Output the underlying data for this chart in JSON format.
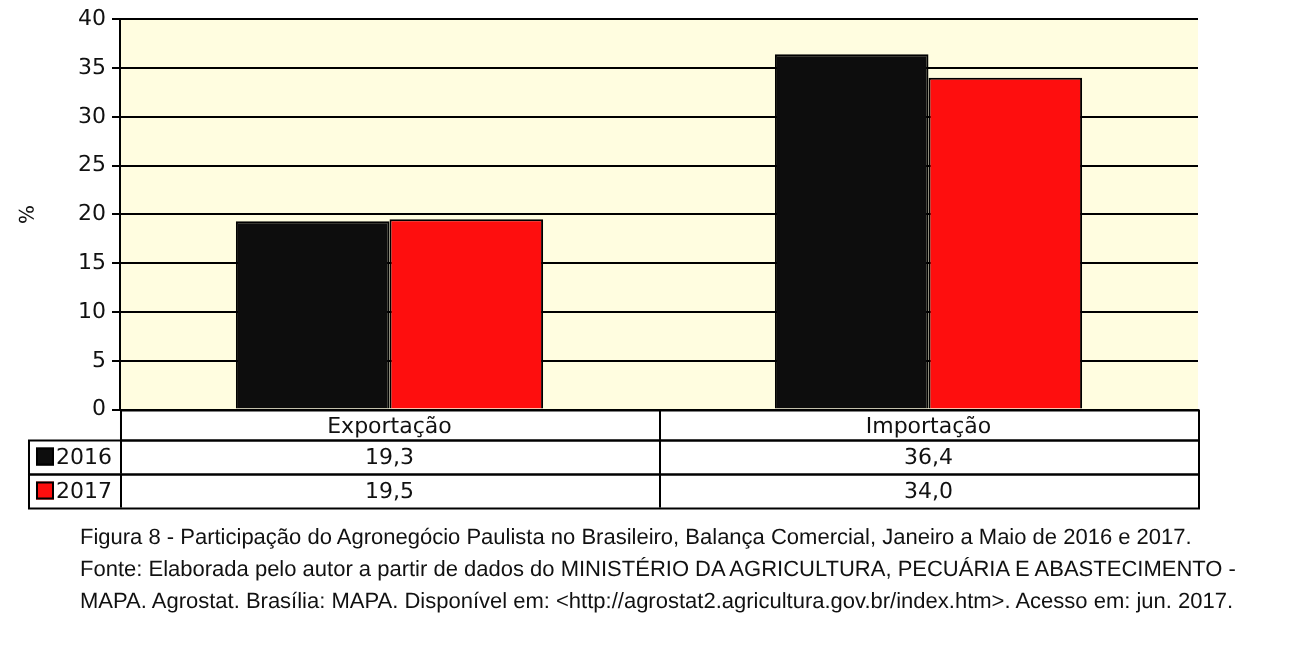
{
  "chart_data": {
    "type": "bar",
    "title": "Figura 8 - Participação do Agronegócio Paulista no Brasileiro, Balança Comercial, Janeiro a Maio de 2016 e 2017.",
    "ylabel": "%",
    "categories": [
      "Exportação",
      "Importação"
    ],
    "series": [
      {
        "name": "2016",
        "color": "#0d0d0d",
        "values": [
          19.3,
          36.4
        ],
        "value_labels": [
          "19,3",
          "36,4"
        ]
      },
      {
        "name": "2017",
        "color": "#fe0e0e",
        "values": [
          19.5,
          34.0
        ],
        "value_labels": [
          "19,5",
          "34,0"
        ]
      }
    ],
    "ylim": [
      0,
      40
    ],
    "yticks": [
      0,
      5,
      10,
      15,
      20,
      25,
      30,
      35,
      40
    ],
    "grid": "y",
    "legend": "bottom",
    "annotations": [
      "Fonte: Elaborada pelo autor a partir de dados do MINISTÉRIO DA AGRICULTURA, PECUÁRIA E ABASTECIMENTO - MAPA. Agrostat. Brasília: MAPA. Disponível em: <http://agrostat2.agricultura.gov.br/index.htm>. Acesso em: jun. 2017."
    ]
  }
}
